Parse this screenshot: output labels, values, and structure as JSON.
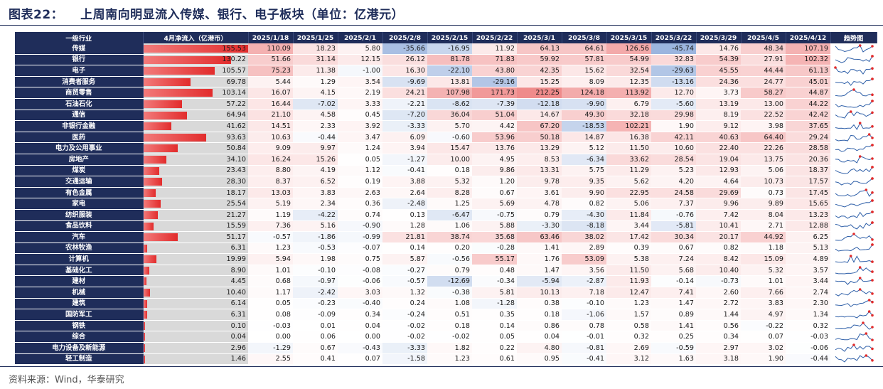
{
  "title_label": "图表22：",
  "title_text": "上周南向明显流入传媒、银行、电子板块（单位：亿港元）",
  "source": "资料来源：Wind，华泰研究",
  "chart_data": {
    "type": "table",
    "headers": {
      "industry": "一级行业",
      "april": "4月净流入（亿港币）",
      "weeks": [
        "2025/1/18",
        "2025/1/25",
        "2025/2/1",
        "2025/2/8",
        "2025/2/15",
        "2025/2/22",
        "2025/3/1",
        "2025/3/8",
        "2025/3/15",
        "2025/3/22",
        "2025/3/29",
        "2025/4/5",
        "2025/4/12"
      ],
      "trend": "趋势图"
    },
    "bar_max": 155.53,
    "colors": {
      "header_bg": "#1f2d5a",
      "positive": "#e22c2c",
      "negative": "#4a78c4",
      "bar": "#e22c2c",
      "bar_track": "#d9d9d9",
      "sparkline": "#2e5fa8",
      "marker": "#e22c2c"
    },
    "rows": [
      {
        "industry": "传媒",
        "april": 155.53,
        "weekly": [
          110.09,
          18.23,
          5.8,
          -35.66,
          -16.95,
          11.92,
          64.13,
          64.61,
          126.56,
          -45.74,
          14.76,
          48.34,
          107.19
        ]
      },
      {
        "industry": "银行",
        "april": 130.22,
        "weekly": [
          51.66,
          31.14,
          12.15,
          26.12,
          81.78,
          71.83,
          59.92,
          57.81,
          54.99,
          32.83,
          54.39,
          27.91,
          102.32
        ]
      },
      {
        "industry": "电子",
        "april": 105.57,
        "weekly": [
          75.23,
          11.38,
          -1.0,
          16.3,
          -22.1,
          43.8,
          42.35,
          15.62,
          32.54,
          -29.63,
          45.55,
          44.44,
          61.13
        ]
      },
      {
        "industry": "消费者服务",
        "april": 69.78,
        "weekly": [
          5.44,
          1.29,
          3.54,
          -9.69,
          13.81,
          -29.16,
          15.25,
          8.09,
          12.35,
          -13.16,
          24.36,
          24.77,
          45.01
        ]
      },
      {
        "industry": "商贸零售",
        "april": 103.14,
        "weekly": [
          16.07,
          4.15,
          2.19,
          24.21,
          107.98,
          171.73,
          212.25,
          124.18,
          113.92,
          12.7,
          3.73,
          58.27,
          44.87
        ]
      },
      {
        "industry": "石油石化",
        "april": 57.22,
        "weekly": [
          16.44,
          -7.02,
          3.33,
          -2.21,
          -8.62,
          -7.39,
          -12.18,
          -9.9,
          6.79,
          -5.6,
          13.19,
          13.0,
          44.22
        ]
      },
      {
        "industry": "通信",
        "april": 64.94,
        "weekly": [
          21.1,
          4.58,
          0.45,
          -7.2,
          36.04,
          51.04,
          14.67,
          49.3,
          32.18,
          29.98,
          8.19,
          22.52,
          42.42
        ]
      },
      {
        "industry": "非银行金融",
        "april": 41.62,
        "weekly": [
          14.51,
          2.33,
          3.92,
          -3.33,
          5.7,
          4.42,
          67.2,
          -18.53,
          102.21,
          1.9,
          9.12,
          3.98,
          37.65
        ]
      },
      {
        "industry": "医药",
        "april": 93.63,
        "weekly": [
          10.63,
          -0.44,
          3.47,
          6.09,
          -0.6,
          53.96,
          50.18,
          14.87,
          16.38,
          42.11,
          40.63,
          64.4,
          29.24
        ]
      },
      {
        "industry": "电力及公用事业",
        "april": 50.84,
        "weekly": [
          9.09,
          9.97,
          1.24,
          3.94,
          15.47,
          13.76,
          13.29,
          5.12,
          11.5,
          10.6,
          22.4,
          22.26,
          28.58
        ]
      },
      {
        "industry": "房地产",
        "april": 34.1,
        "weekly": [
          16.24,
          15.26,
          0.05,
          -1.27,
          10.0,
          4.95,
          8.53,
          -6.34,
          33.62,
          28.54,
          19.04,
          13.75,
          20.36
        ]
      },
      {
        "industry": "煤炭",
        "april": 23.43,
        "weekly": [
          8.8,
          4.19,
          1.12,
          -0.41,
          0.18,
          9.86,
          13.31,
          5.75,
          11.29,
          5.23,
          12.93,
          5.06,
          18.37
        ]
      },
      {
        "industry": "交通运输",
        "april": 28.3,
        "weekly": [
          8.37,
          6.52,
          0.19,
          3.88,
          5.32,
          1.2,
          9.78,
          9.35,
          5.62,
          4.2,
          4.64,
          10.73,
          17.57
        ]
      },
      {
        "industry": "有色金属",
        "april": 18.17,
        "weekly": [
          13.03,
          3.83,
          2.63,
          2.64,
          8.28,
          0.67,
          3.61,
          9.9,
          22.95,
          24.58,
          29.69,
          0.73,
          17.45
        ]
      },
      {
        "industry": "家电",
        "april": 25.54,
        "weekly": [
          5.19,
          2.34,
          0.36,
          -2.48,
          1.25,
          5.69,
          4.78,
          0.82,
          5.06,
          7.37,
          9.96,
          9.89,
          15.65
        ]
      },
      {
        "industry": "纺织服装",
        "april": 21.27,
        "weekly": [
          1.19,
          -4.22,
          0.74,
          0.13,
          -6.47,
          -0.75,
          0.79,
          -4.3,
          11.84,
          -0.76,
          7.42,
          8.04,
          13.23
        ]
      },
      {
        "industry": "食品饮料",
        "april": 15.59,
        "weekly": [
          7.36,
          5.16,
          -0.9,
          1.28,
          1.06,
          5.88,
          -3.3,
          -8.18,
          3.44,
          -5.81,
          10.41,
          2.71,
          12.88
        ]
      },
      {
        "industry": "汽车",
        "april": 51.17,
        "weekly": [
          -0.57,
          -1.86,
          -0.99,
          21.81,
          38.74,
          35.68,
          63.46,
          38.02,
          17.42,
          30.34,
          20.17,
          44.92,
          6.25
        ]
      },
      {
        "industry": "农林牧渔",
        "april": 6.31,
        "weekly": [
          1.23,
          -0.53,
          -0.07,
          0.14,
          0.2,
          -0.28,
          1.41,
          2.89,
          0.39,
          0.67,
          0.82,
          1.18,
          5.13
        ]
      },
      {
        "industry": "计算机",
        "april": 19.99,
        "weekly": [
          5.94,
          1.98,
          0.75,
          5.87,
          -0.56,
          55.17,
          1.76,
          53.09,
          5.38,
          7.24,
          8.42,
          15.09,
          4.89
        ]
      },
      {
        "industry": "基础化工",
        "april": 8.9,
        "weekly": [
          1.01,
          -0.1,
          -0.08,
          -0.27,
          0.79,
          0.48,
          1.47,
          3.56,
          11.5,
          5.68,
          10.4,
          5.32,
          3.57
        ]
      },
      {
        "industry": "建材",
        "april": 4.45,
        "weekly": [
          0.68,
          -0.97,
          -0.06,
          -0.57,
          -12.69,
          -0.34,
          -5.94,
          -2.87,
          11.93,
          -0.14,
          -0.73,
          1.01,
          3.44
        ]
      },
      {
        "industry": "机械",
        "april": 10.4,
        "weekly": [
          1.17,
          -2.42,
          3.03,
          1.32,
          -0.38,
          5.81,
          10.13,
          7.18,
          12.47,
          7.41,
          2.6,
          7.66,
          2.74
        ]
      },
      {
        "industry": "建筑",
        "april": 6.14,
        "weekly": [
          0.05,
          -0.23,
          -0.4,
          0.24,
          1.08,
          -1.28,
          0.38,
          -0.1,
          1.23,
          1.47,
          2.72,
          3.83,
          2.3
        ]
      },
      {
        "industry": "国防军工",
        "april": 6.31,
        "weekly": [
          0.08,
          -0.09,
          0.34,
          -0.24,
          0.51,
          0.35,
          0.18,
          -1.06,
          1.57,
          0.89,
          1.44,
          4.97,
          1.34
        ]
      },
      {
        "industry": "钢铁",
        "april": 0.1,
        "weekly": [
          -0.03,
          0.01,
          0.04,
          -0.02,
          0.18,
          0.14,
          0.86,
          0.78,
          0.58,
          1.41,
          0.56,
          -0.22,
          0.32
        ]
      },
      {
        "industry": "综合",
        "april": 0.04,
        "weekly": [
          0.0,
          0.06,
          0.0,
          -0.02,
          -0.02,
          0.05,
          0.04,
          -0.01,
          0.32,
          0.25,
          0.34,
          0.07,
          -0.03
        ]
      },
      {
        "industry": "电力设备及新能源",
        "april": 2.96,
        "weekly": [
          -1.29,
          0.67,
          -0.43,
          -3.33,
          1.82,
          0.22,
          4.8,
          -0.81,
          2.69,
          -0.59,
          2.97,
          3.02,
          -0.06
        ]
      },
      {
        "industry": "轻工制造",
        "april": 1.46,
        "weekly": [
          2.55,
          0.41,
          0.07,
          -1.58,
          1.23,
          0.61,
          0.95,
          -0.41,
          3.12,
          1.63,
          3.18,
          1.9,
          -0.44
        ]
      }
    ]
  }
}
